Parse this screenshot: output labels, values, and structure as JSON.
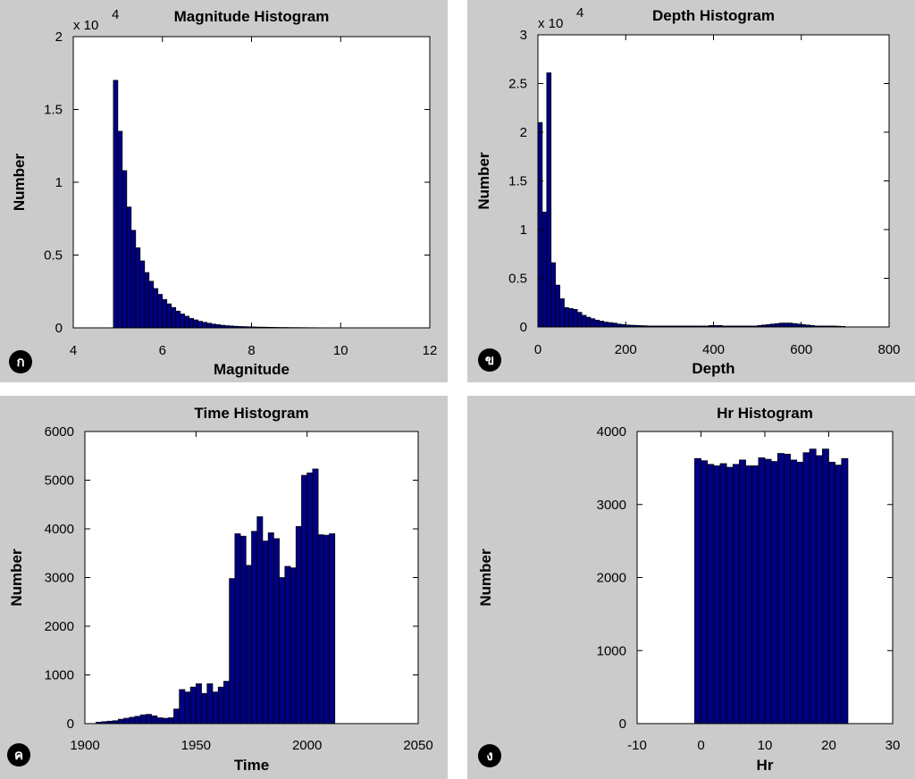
{
  "panels": [
    {
      "badge": "ก"
    },
    {
      "badge": "ข"
    },
    {
      "badge": "ค"
    },
    {
      "badge": "ง"
    }
  ],
  "chart_data": [
    {
      "type": "bar",
      "title": "Magnitude Histogram",
      "xlabel": "Magnitude",
      "ylabel": "Number",
      "y_multiplier": "x 10",
      "y_exponent": "4",
      "xlim": [
        4,
        12
      ],
      "ylim": [
        0,
        20000
      ],
      "xticks": [
        4,
        6,
        8,
        10,
        12
      ],
      "yticks": [
        0,
        5000,
        10000,
        15000,
        20000
      ],
      "ytick_labels": [
        "0",
        "0.5",
        "1",
        "1.5",
        "2"
      ],
      "bin_start": 4.9,
      "bin_width": 0.1,
      "values": [
        17000,
        13500,
        10800,
        8300,
        6700,
        5500,
        4600,
        3800,
        3200,
        2700,
        2300,
        1950,
        1650,
        1400,
        1150,
        950,
        800,
        650,
        550,
        450,
        380,
        320,
        260,
        220,
        180,
        150,
        130,
        110,
        95,
        85,
        75,
        65,
        55,
        50,
        45,
        40,
        35,
        30,
        28,
        25,
        22,
        20,
        18,
        16,
        14,
        12,
        10
      ],
      "bar_color": "#000080"
    },
    {
      "type": "bar",
      "title": "Depth Histogram",
      "xlabel": "Depth",
      "ylabel": "Number",
      "y_multiplier": "x 10",
      "y_exponent": "4",
      "xlim": [
        0,
        800
      ],
      "ylim": [
        0,
        30000
      ],
      "xticks": [
        0,
        200,
        400,
        600,
        800
      ],
      "yticks": [
        0,
        5000,
        10000,
        15000,
        20000,
        25000,
        30000
      ],
      "ytick_labels": [
        "0",
        "0.5",
        "1",
        "1.5",
        "2",
        "2.5",
        "3"
      ],
      "bin_start": 0,
      "bin_width": 10,
      "values": [
        21000,
        11800,
        26100,
        6600,
        4300,
        2900,
        2000,
        1900,
        1800,
        1500,
        1200,
        1000,
        850,
        700,
        600,
        500,
        450,
        400,
        300,
        250,
        200,
        180,
        160,
        140,
        120,
        100,
        100,
        100,
        100,
        100,
        100,
        100,
        100,
        100,
        100,
        100,
        100,
        100,
        100,
        150,
        150,
        150,
        100,
        100,
        100,
        100,
        100,
        100,
        100,
        100,
        150,
        200,
        250,
        300,
        350,
        400,
        400,
        400,
        350,
        300,
        250,
        200,
        150,
        100,
        100,
        100,
        100,
        100,
        80,
        60
      ],
      "bar_color": "#000080"
    },
    {
      "type": "bar",
      "title": "Time Histogram",
      "xlabel": "Time",
      "ylabel": "Number",
      "xlim": [
        1900,
        2050
      ],
      "ylim": [
        0,
        6000
      ],
      "xticks": [
        1900,
        1950,
        2000,
        2050
      ],
      "yticks": [
        0,
        1000,
        2000,
        3000,
        4000,
        5000,
        6000
      ],
      "ytick_labels": [
        "0",
        "1000",
        "2000",
        "3000",
        "4000",
        "5000",
        "6000"
      ],
      "bin_start": 1905,
      "bin_width": 2.5,
      "values": [
        30,
        40,
        50,
        60,
        90,
        110,
        130,
        150,
        180,
        190,
        160,
        120,
        110,
        120,
        300,
        700,
        650,
        750,
        820,
        620,
        820,
        650,
        750,
        870,
        2980,
        3900,
        3850,
        3250,
        3950,
        4250,
        3750,
        3920,
        3800,
        3000,
        3230,
        3200,
        4050,
        5100,
        5150,
        5230,
        3880,
        3870,
        3900
      ],
      "bar_color": "#000080"
    },
    {
      "type": "bar",
      "title": "Hr Histogram",
      "xlabel": "Hr",
      "ylabel": "Number",
      "xlim": [
        -10,
        30
      ],
      "ylim": [
        0,
        4000
      ],
      "xticks": [
        -10,
        0,
        10,
        20,
        30
      ],
      "yticks": [
        0,
        1000,
        2000,
        3000,
        4000
      ],
      "ytick_labels": [
        "0",
        "1000",
        "2000",
        "3000",
        "4000"
      ],
      "bin_start": -1,
      "bin_width": 1,
      "values": [
        3630,
        3600,
        3550,
        3530,
        3560,
        3510,
        3550,
        3610,
        3530,
        3530,
        3640,
        3620,
        3590,
        3700,
        3690,
        3610,
        3580,
        3710,
        3760,
        3670,
        3760,
        3580,
        3540,
        3630
      ],
      "bar_color": "#000080"
    }
  ]
}
